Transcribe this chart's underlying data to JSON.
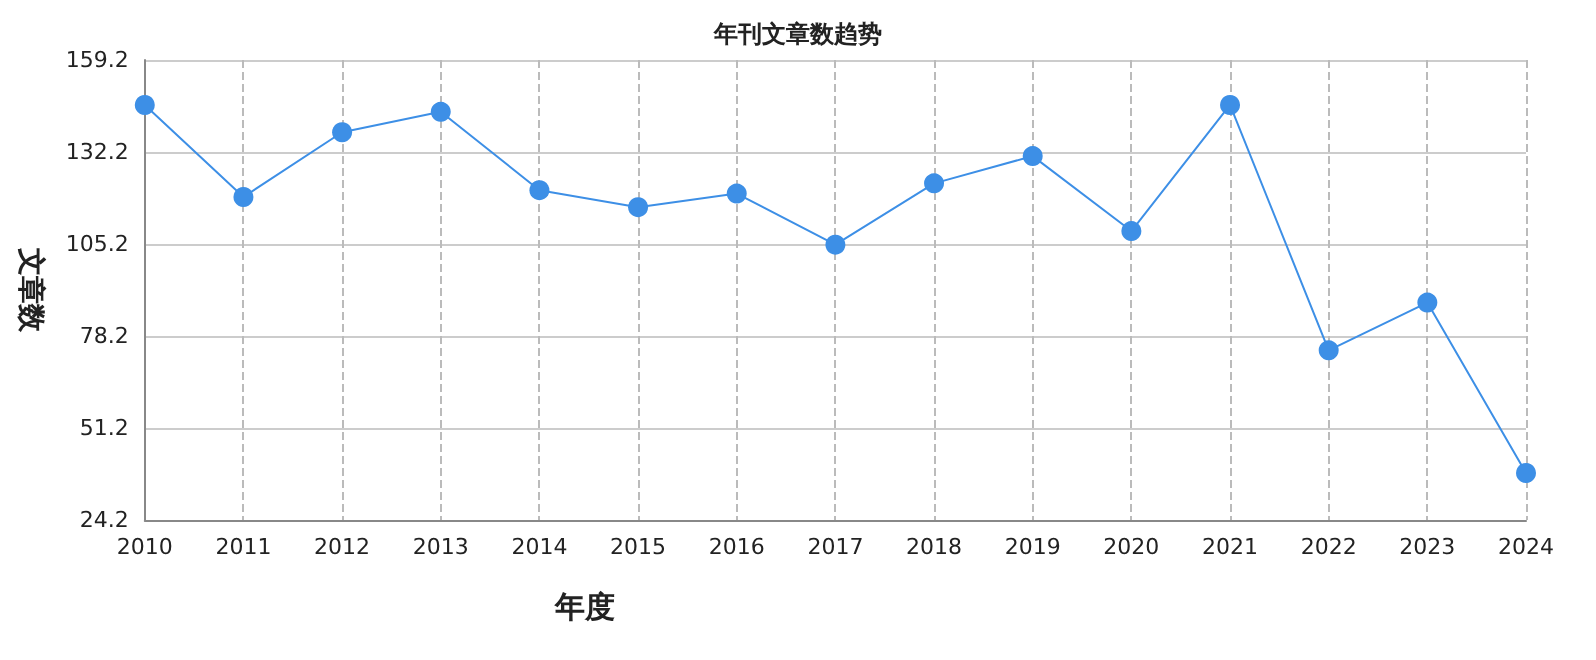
{
  "chart_data": {
    "type": "line",
    "title": "年刊文章数趋势",
    "xlabel": "年度",
    "ylabel": "文章数",
    "categories": [
      "2010",
      "2011",
      "2012",
      "2013",
      "2014",
      "2015",
      "2016",
      "2017",
      "2018",
      "2019",
      "2020",
      "2021",
      "2022",
      "2023",
      "2024"
    ],
    "series": [
      {
        "color": "#3d8fe6",
        "values": [
          146,
          119,
          138,
          144,
          121,
          116,
          120,
          105,
          123,
          131,
          109,
          146,
          74,
          88,
          38
        ]
      }
    ],
    "ylim": [
      24.2,
      159.2
    ],
    "yticks": [
      24.2,
      51.2,
      78.2,
      105.2,
      132.2,
      159.2
    ],
    "grid": true,
    "marker": "circle",
    "line_style": "solid"
  }
}
